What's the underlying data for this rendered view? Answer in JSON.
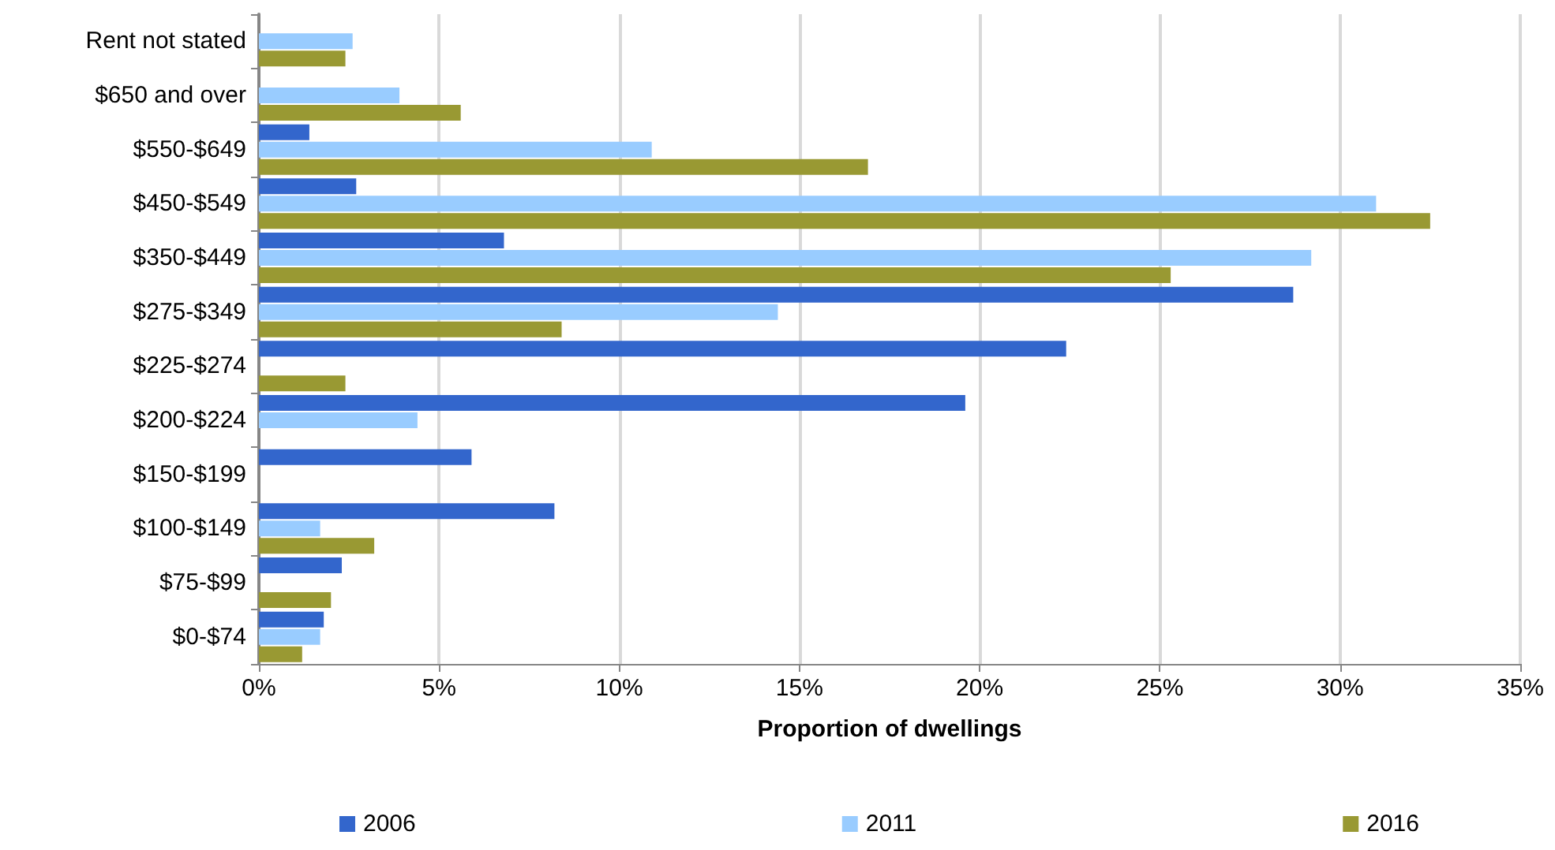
{
  "chart_data": {
    "type": "bar",
    "orientation": "horizontal",
    "xlabel": "Proportion of dwellings",
    "categories": [
      "Rent not stated",
      "$650 and over",
      "$550-$649",
      "$450-$549",
      "$350-$449",
      "$275-$349",
      "$225-$274",
      "$200-$224",
      "$150-$199",
      "$100-$149",
      "$75-$99",
      "$0-$74"
    ],
    "series": [
      {
        "name": "2006",
        "color": "#3366cc",
        "values": [
          null,
          null,
          1.4,
          2.7,
          6.8,
          28.7,
          22.4,
          19.6,
          5.9,
          8.2,
          2.3,
          1.8
        ]
      },
      {
        "name": "2011",
        "color": "#99ccff",
        "values": [
          2.6,
          3.9,
          10.9,
          31.0,
          29.2,
          14.4,
          null,
          4.4,
          null,
          1.7,
          null,
          1.7
        ]
      },
      {
        "name": "2016",
        "color": "#999933",
        "values": [
          2.4,
          5.6,
          16.9,
          32.5,
          25.3,
          8.4,
          2.4,
          null,
          null,
          3.2,
          2.0,
          1.2
        ]
      }
    ],
    "xlim": [
      0,
      35
    ],
    "xticks": [
      {
        "value": 0,
        "label": "0%"
      },
      {
        "value": 5,
        "label": "5%"
      },
      {
        "value": 10,
        "label": "10%"
      },
      {
        "value": 15,
        "label": "15%"
      },
      {
        "value": 20,
        "label": "20%"
      },
      {
        "value": 25,
        "label": "25%"
      },
      {
        "value": 30,
        "label": "30%"
      },
      {
        "value": 35,
        "label": "35%"
      }
    ],
    "grid": "x",
    "legend": "bottom"
  }
}
